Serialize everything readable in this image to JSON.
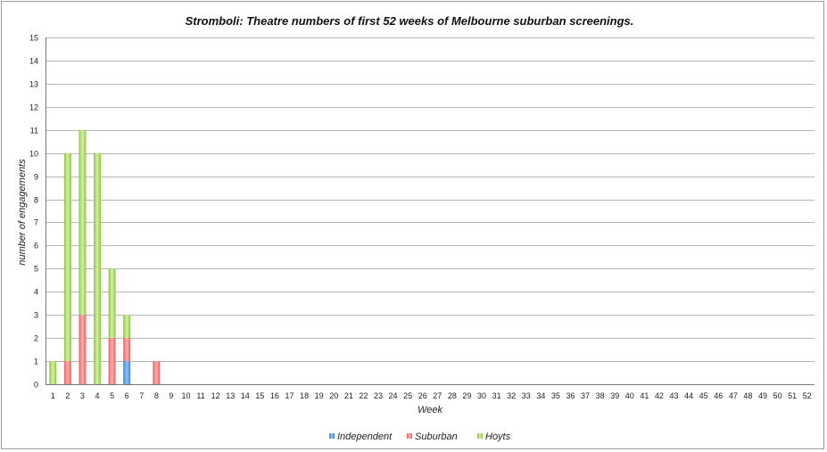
{
  "chart_data": {
    "type": "bar",
    "stacked": true,
    "title": "Stromboli: Theatre numbers of first 52 weeks of Melbourne suburban screenings.",
    "xlabel": "Week",
    "ylabel": "number of engagements",
    "ylim": [
      0,
      15
    ],
    "yticks": [
      "0",
      "1",
      "2",
      "3",
      "4",
      "5",
      "6",
      "7",
      "8",
      "9",
      "10",
      "11",
      "12",
      "13",
      "14",
      "15"
    ],
    "categories": [
      "1",
      "2",
      "3",
      "4",
      "5",
      "6",
      "7",
      "8",
      "9",
      "10",
      "11",
      "12",
      "13",
      "14",
      "15",
      "16",
      "17",
      "18",
      "19",
      "20",
      "21",
      "22",
      "23",
      "24",
      "25",
      "26",
      "27",
      "28",
      "29",
      "30",
      "31",
      "32",
      "33",
      "34",
      "35",
      "36",
      "37",
      "38",
      "39",
      "40",
      "41",
      "42",
      "43",
      "44",
      "45",
      "46",
      "47",
      "48",
      "49",
      "50",
      "51",
      "52"
    ],
    "grid": true,
    "legend_position": "bottom",
    "series": [
      {
        "name": "Independent",
        "color": "#5b9bd5",
        "values": [
          0,
          0,
          0,
          0,
          0,
          1,
          0,
          0,
          0,
          0,
          0,
          0,
          0,
          0,
          0,
          0,
          0,
          0,
          0,
          0,
          0,
          0,
          0,
          0,
          0,
          0,
          0,
          0,
          0,
          0,
          0,
          0,
          0,
          0,
          0,
          0,
          0,
          0,
          0,
          0,
          0,
          0,
          0,
          0,
          0,
          0,
          0,
          0,
          0,
          0,
          0,
          0
        ]
      },
      {
        "name": "Suburban",
        "color": "#f08080",
        "values": [
          0,
          1,
          3,
          0,
          2,
          1,
          0,
          1,
          0,
          0,
          0,
          0,
          0,
          0,
          0,
          0,
          0,
          0,
          0,
          0,
          0,
          0,
          0,
          0,
          0,
          0,
          0,
          0,
          0,
          0,
          0,
          0,
          0,
          0,
          0,
          0,
          0,
          0,
          0,
          0,
          0,
          0,
          0,
          0,
          0,
          0,
          0,
          0,
          0,
          0,
          0,
          0
        ]
      },
      {
        "name": "Hoyts",
        "color": "#9acd5a",
        "values": [
          1,
          9,
          8,
          10,
          3,
          1,
          0,
          0,
          0,
          0,
          0,
          0,
          0,
          0,
          0,
          0,
          0,
          0,
          0,
          0,
          0,
          0,
          0,
          0,
          0,
          0,
          0,
          0,
          0,
          0,
          0,
          0,
          0,
          0,
          0,
          0,
          0,
          0,
          0,
          0,
          0,
          0,
          0,
          0,
          0,
          0,
          0,
          0,
          0,
          0,
          0,
          0
        ]
      }
    ]
  }
}
